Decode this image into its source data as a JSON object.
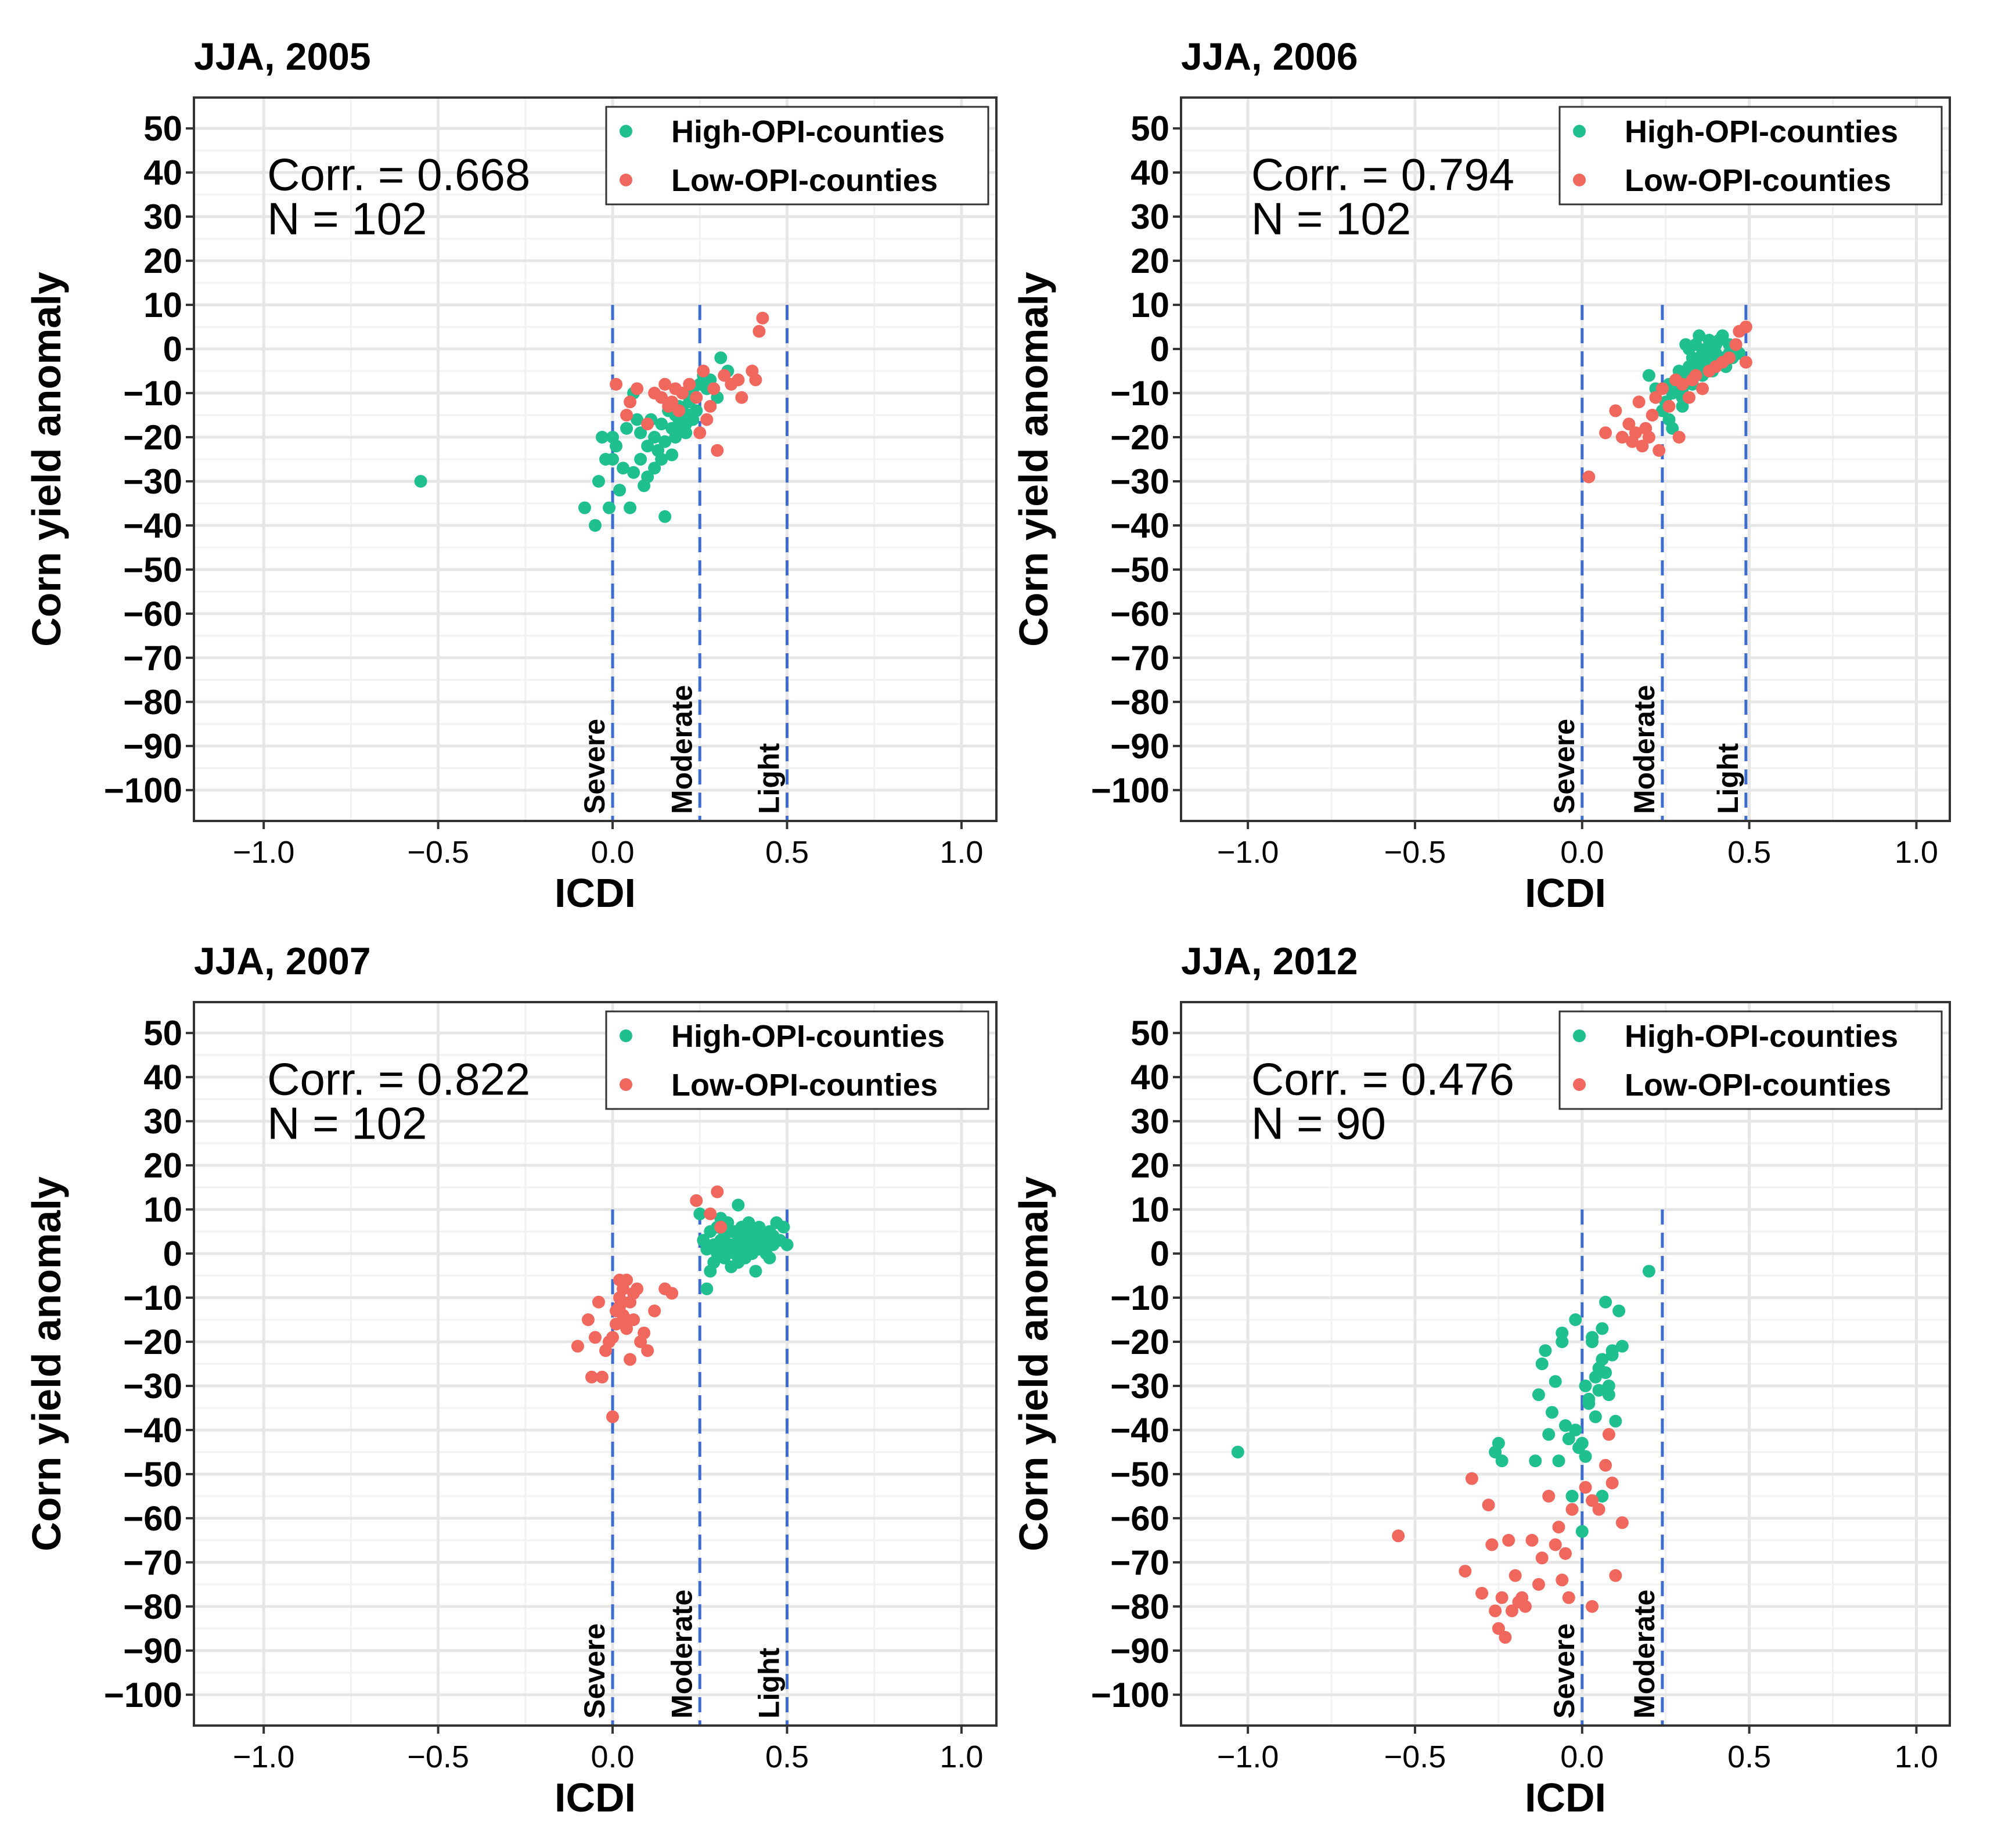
{
  "figure": {
    "domain": "Chart"
  },
  "colors": {
    "high": "#1fbf8f",
    "low": "#f0685d",
    "vline": "#3d6bd0",
    "grid_major": "#e6e6e6",
    "grid_minor": "#f2f2f2",
    "border": "#333333",
    "text": "#000000"
  },
  "chart_data": [
    {
      "type": "scatter",
      "title": "JJA, 2005",
      "xlabel": "ICDI",
      "ylabel": "Corn yield anomaly",
      "xlim": [
        -1.2,
        1.1
      ],
      "ylim": [
        -107,
        57
      ],
      "xticks": [
        -1.0,
        -0.5,
        0.0,
        0.5,
        1.0
      ],
      "xtick_labels": [
        "−1.0",
        "−0.5",
        "0.0",
        "0.5",
        "1.0"
      ],
      "yticks": [
        50,
        40,
        30,
        20,
        10,
        0,
        -10,
        -20,
        -30,
        -40,
        -50,
        -60,
        -70,
        -80,
        -90,
        -100
      ],
      "ytick_labels": [
        "50",
        "40",
        "30",
        "20",
        "10",
        "0",
        "−10",
        "−20",
        "−30",
        "−40",
        "−50",
        "−60",
        "−70",
        "−80",
        "−90",
        "−100"
      ],
      "grid": true,
      "annotation": {
        "corr": "Corr. = 0.668",
        "n": "N = 102"
      },
      "legend": {
        "position": "top-right",
        "high_label": "High-OPI-counties",
        "low_label": "Low-OPI-counties"
      },
      "vlines": [
        {
          "x": 0.0,
          "label": "Severe"
        },
        {
          "x": 0.25,
          "label": "Moderate"
        },
        {
          "x": 0.5,
          "label": "Light"
        }
      ],
      "vline_range": [
        -107,
        10
      ],
      "series": [
        {
          "name": "High-OPI-counties",
          "key": "high",
          "x": [
            -0.55,
            -0.08,
            -0.05,
            -0.04,
            -0.03,
            -0.02,
            -0.01,
            0.0,
            0.0,
            0.01,
            0.02,
            0.03,
            0.04,
            0.05,
            0.06,
            0.06,
            0.07,
            0.08,
            0.08,
            0.09,
            0.1,
            0.1,
            0.11,
            0.12,
            0.12,
            0.13,
            0.14,
            0.14,
            0.15,
            0.15,
            0.16,
            0.17,
            0.17,
            0.18,
            0.18,
            0.19,
            0.19,
            0.2,
            0.2,
            0.21,
            0.21,
            0.22,
            0.22,
            0.23,
            0.23,
            0.24,
            0.25,
            0.26,
            0.27,
            0.28,
            0.3,
            0.31,
            0.33
          ],
          "y": [
            -30,
            -36,
            -40,
            -30,
            -20,
            -25,
            -36,
            -25,
            -20,
            -22,
            -32,
            -27,
            -18,
            -36,
            -10,
            -28,
            -16,
            -25,
            -19,
            -31,
            -22,
            -29,
            -16,
            -27,
            -20,
            -23,
            -25,
            -17,
            -38,
            -21,
            -14,
            -18,
            -24,
            -15,
            -20,
            -16,
            -13,
            -18,
            -14,
            -17,
            -19,
            -15,
            -12,
            -16,
            -10,
            -14,
            -8,
            -6,
            -9,
            -7,
            -11,
            -2,
            -5
          ]
        },
        {
          "name": "Low-OPI-counties",
          "key": "low",
          "x": [
            0.01,
            0.04,
            0.05,
            0.07,
            0.1,
            0.12,
            0.14,
            0.15,
            0.16,
            0.17,
            0.18,
            0.19,
            0.2,
            0.22,
            0.24,
            0.25,
            0.26,
            0.27,
            0.28,
            0.29,
            0.3,
            0.32,
            0.34,
            0.36,
            0.37,
            0.4,
            0.41,
            0.42,
            0.43
          ],
          "y": [
            -8,
            -15,
            -12,
            -9,
            -17,
            -10,
            -11,
            -8,
            -13,
            -12,
            -9,
            -14,
            -10,
            -8,
            -11,
            -19,
            -5,
            -16,
            -13,
            -9,
            -23,
            -6,
            -8,
            -7,
            -11,
            -5,
            -7,
            4,
            7
          ]
        }
      ]
    },
    {
      "type": "scatter",
      "title": "JJA, 2006",
      "xlabel": "ICDI",
      "ylabel": "Corn yield anomaly",
      "xlim": [
        -1.2,
        1.1
      ],
      "ylim": [
        -107,
        57
      ],
      "xticks": [
        -1.0,
        -0.5,
        0.0,
        0.5,
        1.0
      ],
      "xtick_labels": [
        "−1.0",
        "−0.5",
        "0.0",
        "0.5",
        "1.0"
      ],
      "yticks": [
        50,
        40,
        30,
        20,
        10,
        0,
        -10,
        -20,
        -30,
        -40,
        -50,
        -60,
        -70,
        -80,
        -90,
        -100
      ],
      "ytick_labels": [
        "50",
        "40",
        "30",
        "20",
        "10",
        "0",
        "−10",
        "−20",
        "−30",
        "−40",
        "−50",
        "−60",
        "−70",
        "−80",
        "−90",
        "−100"
      ],
      "grid": true,
      "annotation": {
        "corr": "Corr. = 0.794",
        "n": "N = 102"
      },
      "legend": {
        "position": "top-right",
        "high_label": "High-OPI-counties",
        "low_label": "Low-OPI-counties"
      },
      "vlines": [
        {
          "x": 0.0,
          "label": "Severe"
        },
        {
          "x": 0.24,
          "label": "Moderate"
        },
        {
          "x": 0.49,
          "label": "Light"
        }
      ],
      "vline_range": [
        -107,
        10
      ],
      "series": [
        {
          "name": "High-OPI-counties",
          "key": "high",
          "x": [
            0.2,
            0.22,
            0.24,
            0.25,
            0.26,
            0.27,
            0.28,
            0.29,
            0.3,
            0.31,
            0.32,
            0.32,
            0.33,
            0.33,
            0.34,
            0.34,
            0.35,
            0.35,
            0.36,
            0.36,
            0.37,
            0.37,
            0.38,
            0.38,
            0.39,
            0.39,
            0.4,
            0.4,
            0.41,
            0.42,
            0.42,
            0.43,
            0.44,
            0.44,
            0.45,
            0.46,
            0.47,
            0.27,
            0.3,
            0.31,
            0.35,
            0.41,
            0.3,
            0.32,
            0.38,
            0.26,
            0.29
          ],
          "y": [
            -6,
            -9,
            -14,
            -12,
            -8,
            -10,
            -7,
            -5,
            -9,
            -6,
            -4,
            0,
            -8,
            -2,
            -5,
            1,
            -3,
            3,
            -6,
            -1,
            -4,
            0,
            -2,
            2,
            -5,
            -3,
            -1,
            1,
            -3,
            -2,
            3,
            -4,
            -1,
            1,
            -2,
            0,
            -1,
            -18,
            -13,
            1,
            -4,
            2,
            -11,
            -7,
            -3,
            -16,
            -8
          ]
        },
        {
          "name": "Low-OPI-counties",
          "key": "low",
          "x": [
            0.02,
            0.07,
            0.1,
            0.12,
            0.14,
            0.15,
            0.16,
            0.17,
            0.18,
            0.19,
            0.2,
            0.21,
            0.22,
            0.23,
            0.24,
            0.26,
            0.28,
            0.3,
            0.32,
            0.34,
            0.36,
            0.38,
            0.4,
            0.42,
            0.44,
            0.46,
            0.47,
            0.49,
            0.49,
            0.33,
            0.29
          ],
          "y": [
            -29,
            -19,
            -14,
            -20,
            -17,
            -21,
            -19,
            -12,
            -22,
            -18,
            -20,
            -15,
            -11,
            -23,
            -9,
            -13,
            -7,
            -8,
            -11,
            -6,
            -9,
            -5,
            -4,
            -3,
            -2,
            1,
            4,
            5,
            -3,
            -7,
            -20
          ]
        }
      ]
    },
    {
      "type": "scatter",
      "title": "JJA, 2007",
      "xlabel": "ICDI",
      "ylabel": "Corn yield anomaly",
      "xlim": [
        -1.2,
        1.1
      ],
      "ylim": [
        -107,
        57
      ],
      "xticks": [
        -1.0,
        -0.5,
        0.0,
        0.5,
        1.0
      ],
      "xtick_labels": [
        "−1.0",
        "−0.5",
        "0.0",
        "0.5",
        "1.0"
      ],
      "yticks": [
        50,
        40,
        30,
        20,
        10,
        0,
        -10,
        -20,
        -30,
        -40,
        -50,
        -60,
        -70,
        -80,
        -90,
        -100
      ],
      "ytick_labels": [
        "50",
        "40",
        "30",
        "20",
        "10",
        "0",
        "−10",
        "−20",
        "−30",
        "−40",
        "−50",
        "−60",
        "−70",
        "−80",
        "−90",
        "−100"
      ],
      "grid": true,
      "annotation": {
        "corr": "Corr. = 0.822",
        "n": "N = 102"
      },
      "legend": {
        "position": "top-right",
        "high_label": "High-OPI-counties",
        "low_label": "Low-OPI-counties"
      },
      "vlines": [
        {
          "x": 0.0,
          "label": "Severe"
        },
        {
          "x": 0.25,
          "label": "Moderate"
        },
        {
          "x": 0.5,
          "label": "Light"
        }
      ],
      "vline_range": [
        -107,
        10
      ],
      "series": [
        {
          "name": "High-OPI-counties",
          "key": "high",
          "x": [
            0.25,
            0.26,
            0.27,
            0.27,
            0.28,
            0.29,
            0.29,
            0.3,
            0.3,
            0.31,
            0.32,
            0.32,
            0.33,
            0.33,
            0.34,
            0.34,
            0.35,
            0.35,
            0.36,
            0.36,
            0.37,
            0.37,
            0.38,
            0.38,
            0.39,
            0.39,
            0.4,
            0.4,
            0.41,
            0.41,
            0.42,
            0.42,
            0.43,
            0.43,
            0.44,
            0.44,
            0.45,
            0.45,
            0.46,
            0.46,
            0.47,
            0.48,
            0.49,
            0.5,
            0.28,
            0.31,
            0.36,
            0.4,
            0.3,
            0.34
          ],
          "y": [
            9,
            3,
            -8,
            1,
            5,
            -2,
            2,
            0,
            6,
            3,
            -1,
            4,
            1,
            7,
            -3,
            2,
            5,
            0,
            11,
            3,
            1,
            6,
            4,
            -1,
            2,
            7,
            0,
            5,
            3,
            -4,
            1,
            6,
            4,
            2,
            3,
            0,
            5,
            -1,
            2,
            4,
            7,
            3,
            6,
            2,
            -4,
            8,
            -2,
            3,
            1,
            5
          ]
        },
        {
          "name": "Low-OPI-counties",
          "key": "low",
          "x": [
            -0.1,
            -0.07,
            -0.06,
            -0.05,
            -0.04,
            -0.03,
            -0.02,
            -0.01,
            0.0,
            0.01,
            0.02,
            0.02,
            0.03,
            0.03,
            0.04,
            0.04,
            0.05,
            0.05,
            0.06,
            0.06,
            0.07,
            0.08,
            0.09,
            0.1,
            0.12,
            0.15,
            0.17,
            0.24,
            0.3,
            0.28,
            0.31,
            0.01,
            0.0,
            0.02,
            0.04
          ],
          "y": [
            -21,
            -15,
            -28,
            -19,
            -11,
            -28,
            -22,
            -20,
            -37,
            -13,
            -6,
            -12,
            -14,
            -8,
            -17,
            -6,
            -11,
            -24,
            -15,
            -9,
            -8,
            -20,
            -18,
            -22,
            -13,
            -8,
            -9,
            12,
            14,
            9,
            6,
            -16,
            -19,
            -10,
            -15
          ]
        }
      ]
    },
    {
      "type": "scatter",
      "title": "JJA, 2012",
      "xlabel": "ICDI",
      "ylabel": "Corn yield anomaly",
      "xlim": [
        -1.2,
        1.1
      ],
      "ylim": [
        -107,
        57
      ],
      "xticks": [
        -1.0,
        -0.5,
        0.0,
        0.5,
        1.0
      ],
      "xtick_labels": [
        "−1.0",
        "−0.5",
        "0.0",
        "0.5",
        "1.0"
      ],
      "yticks": [
        50,
        40,
        30,
        20,
        10,
        0,
        -10,
        -20,
        -30,
        -40,
        -50,
        -60,
        -70,
        -80,
        -90,
        -100
      ],
      "ytick_labels": [
        "50",
        "40",
        "30",
        "20",
        "10",
        "0",
        "−10",
        "−20",
        "−30",
        "−40",
        "−50",
        "−60",
        "−70",
        "−80",
        "−90",
        "−100"
      ],
      "grid": true,
      "annotation": {
        "corr": "Corr. = 0.476",
        "n": "N = 90"
      },
      "legend": {
        "position": "top-right",
        "high_label": "High-OPI-counties",
        "low_label": "Low-OPI-counties"
      },
      "vlines": [
        {
          "x": 0.0,
          "label": "Severe"
        },
        {
          "x": 0.24,
          "label": "Moderate"
        }
      ],
      "vline_range": [
        -107,
        10
      ],
      "series": [
        {
          "name": "High-OPI-counties",
          "key": "high",
          "x": [
            -1.03,
            -0.26,
            -0.25,
            -0.24,
            -0.14,
            -0.13,
            -0.12,
            -0.11,
            -0.1,
            -0.09,
            -0.08,
            -0.07,
            -0.06,
            -0.05,
            -0.04,
            -0.03,
            -0.02,
            -0.01,
            0.0,
            0.01,
            0.02,
            0.03,
            0.04,
            0.05,
            0.06,
            0.07,
            0.08,
            0.09,
            0.1,
            0.11,
            0.12,
            0.2,
            0.02,
            0.04,
            0.06,
            0.08,
            0.0,
            -0.06,
            0.03,
            0.05,
            0.07,
            0.09,
            -0.02,
            0.01,
            0.06
          ],
          "y": [
            -45,
            -45,
            -43,
            -47,
            -47,
            -32,
            -25,
            -22,
            -41,
            -36,
            -29,
            -47,
            -18,
            -39,
            -42,
            -55,
            -15,
            -44,
            -63,
            -30,
            -33,
            -20,
            -37,
            -26,
            -17,
            -11,
            -30,
            -22,
            -38,
            -13,
            -21,
            -4,
            -34,
            -28,
            -24,
            -32,
            -43,
            -20,
            -19,
            -31,
            -27,
            -23,
            -40,
            -46,
            -55
          ]
        },
        {
          "name": "Low-OPI-counties",
          "key": "low",
          "x": [
            -0.55,
            -0.35,
            -0.33,
            -0.3,
            -0.28,
            -0.27,
            -0.26,
            -0.25,
            -0.24,
            -0.23,
            -0.22,
            -0.21,
            -0.2,
            -0.19,
            -0.18,
            -0.17,
            -0.15,
            -0.13,
            -0.12,
            -0.1,
            -0.08,
            -0.07,
            -0.06,
            -0.05,
            -0.04,
            -0.03,
            0.01,
            0.03,
            0.05,
            0.08,
            0.1,
            0.12,
            0.03,
            0.07,
            0.09
          ],
          "y": [
            -64,
            -72,
            -51,
            -77,
            -57,
            -66,
            -81,
            -85,
            -78,
            -87,
            -65,
            -81,
            -73,
            -79,
            -78,
            -80,
            -65,
            -75,
            -69,
            -55,
            -66,
            -62,
            -74,
            -68,
            -78,
            -58,
            -53,
            -80,
            -58,
            -41,
            -73,
            -61,
            -56,
            -48,
            -52
          ]
        }
      ]
    }
  ]
}
